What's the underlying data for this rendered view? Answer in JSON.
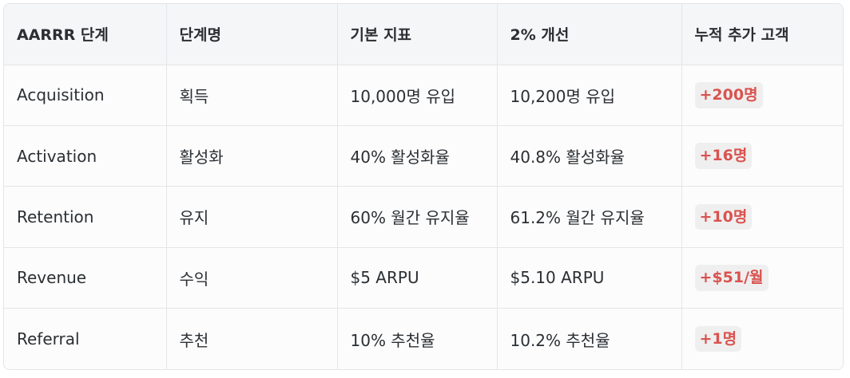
{
  "table": {
    "headers": [
      "AARRR 단계",
      "단계명",
      "기본 지표",
      "2% 개선",
      "누적 추가 고객"
    ],
    "rows": [
      {
        "stage": "Acquisition",
        "name": "획득",
        "base": "10,000명 유입",
        "improved": "10,200명 유입",
        "cumulative": "+200명"
      },
      {
        "stage": "Activation",
        "name": "활성화",
        "base": "40% 활성화율",
        "improved": "40.8% 활성화율",
        "cumulative": "+16명"
      },
      {
        "stage": "Retention",
        "name": "유지",
        "base": "60% 월간 유지율",
        "improved": "61.2% 월간 유지율",
        "cumulative": "+10명"
      },
      {
        "stage": "Revenue",
        "name": "수익",
        "base": "$5 ARPU",
        "improved": "$5.10 ARPU",
        "cumulative": "+$51/월"
      },
      {
        "stage": "Referral",
        "name": "추천",
        "base": "10% 추천율",
        "improved": "10.2% 추천율",
        "cumulative": "+1명"
      }
    ]
  },
  "colors": {
    "highlight_text": "#d9534f",
    "highlight_bg": "#efefef",
    "header_bg": "#f5f6f7",
    "border": "#e3e5e8"
  }
}
